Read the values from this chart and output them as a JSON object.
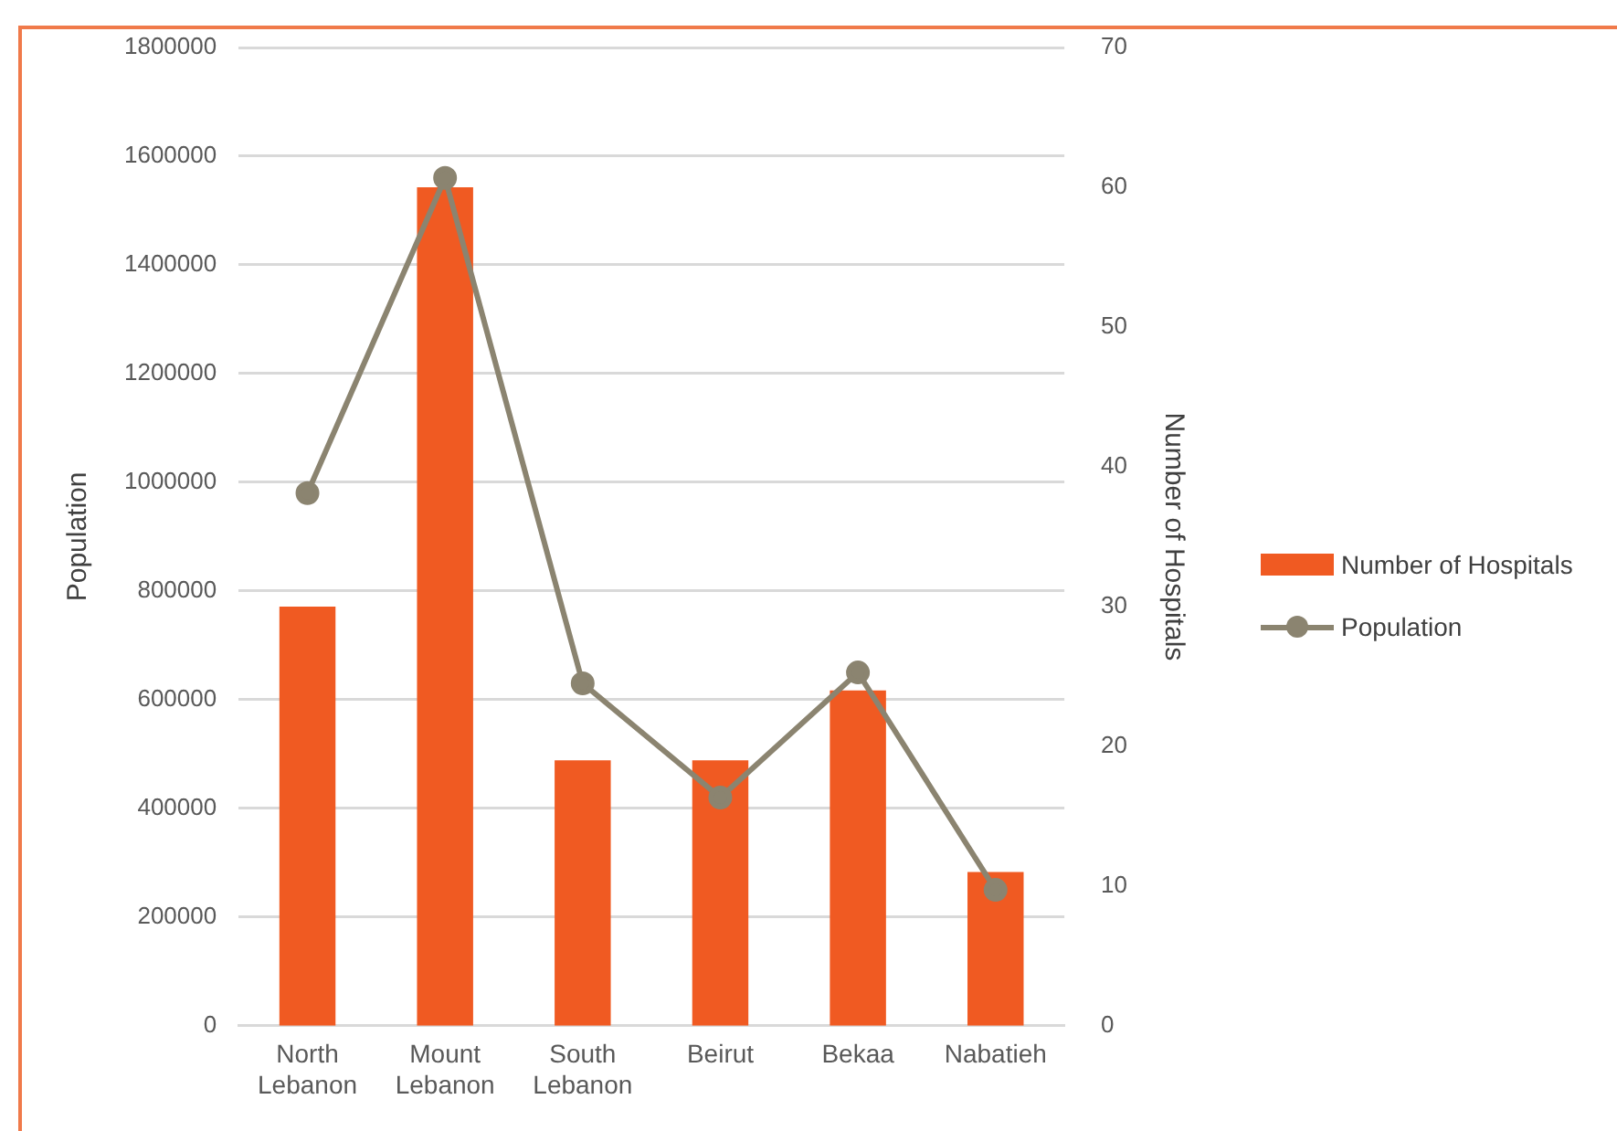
{
  "chart_data": {
    "type": "bar",
    "xlabel": null,
    "ylabel": "Population",
    "y2label": "Number of Hospitals",
    "categories": [
      "North Lebanon",
      "Mount Lebanon",
      "South Lebanon",
      "Beirut",
      "Bekaa",
      "Nabatieh"
    ],
    "series": [
      {
        "name": "Number of Hospitals",
        "type": "bar",
        "axis": "y2",
        "color": "#f05a22",
        "values": [
          30,
          60,
          19,
          19,
          24,
          11
        ]
      },
      {
        "name": "Population",
        "type": "line",
        "axis": "y",
        "color": "#8b8470",
        "values": [
          980000,
          1560000,
          630000,
          420000,
          650000,
          250000
        ]
      }
    ],
    "ylim": [
      0,
      1800000
    ],
    "yticks": [
      0,
      200000,
      400000,
      600000,
      800000,
      1000000,
      1200000,
      1400000,
      1600000,
      1800000
    ],
    "y2lim": [
      0,
      70
    ],
    "y2ticks": [
      0,
      10,
      20,
      30,
      40,
      50,
      60,
      70
    ],
    "grid": "y",
    "legend": "right",
    "marker": "circle",
    "line_style": "solid"
  }
}
